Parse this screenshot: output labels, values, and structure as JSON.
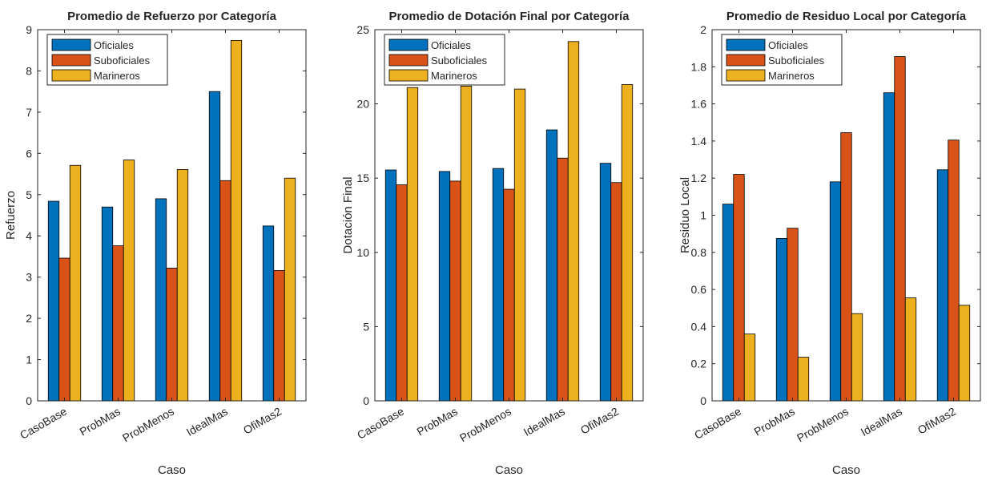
{
  "chart_data": [
    {
      "type": "bar",
      "title": "Promedio de Refuerzo por Categoría",
      "xlabel": "Caso",
      "ylabel": "Refuerzo",
      "ylim": [
        0,
        9
      ],
      "yticks": [
        "0",
        "1",
        "2",
        "3",
        "4",
        "5",
        "6",
        "7",
        "8",
        "9"
      ],
      "categories": [
        "CasoBase",
        "ProbMas",
        "ProbMenos",
        "IdealMas",
        "OfiMas2"
      ],
      "series": [
        {
          "name": "Oficiales",
          "color": "#0072BD",
          "values": [
            4.84,
            4.7,
            4.9,
            7.5,
            4.24
          ]
        },
        {
          "name": "Suboficiales",
          "color": "#D95319",
          "values": [
            3.46,
            3.76,
            3.22,
            5.34,
            3.16
          ]
        },
        {
          "name": "Marineros",
          "color": "#EDB120",
          "values": [
            5.71,
            5.84,
            5.61,
            8.74,
            5.4
          ]
        }
      ],
      "legend": "top-left",
      "grid": false
    },
    {
      "type": "bar",
      "title": "Promedio de Dotación Final por Categoría",
      "xlabel": "Caso",
      "ylabel": "Dotación Final",
      "ylim": [
        0,
        25
      ],
      "yticks": [
        "0",
        "5",
        "10",
        "15",
        "20",
        "25"
      ],
      "categories": [
        "CasoBase",
        "ProbMas",
        "ProbMenos",
        "IdealMas",
        "OfiMas2"
      ],
      "series": [
        {
          "name": "Oficiales",
          "color": "#0072BD",
          "values": [
            15.55,
            15.45,
            15.65,
            18.25,
            16.0
          ]
        },
        {
          "name": "Suboficiales",
          "color": "#D95319",
          "values": [
            14.55,
            14.8,
            14.25,
            16.35,
            14.7
          ]
        },
        {
          "name": "Marineros",
          "color": "#EDB120",
          "values": [
            21.1,
            21.2,
            21.0,
            24.2,
            21.3
          ]
        }
      ],
      "legend": "top-left",
      "grid": false
    },
    {
      "type": "bar",
      "title": "Promedio de Residuo Local por Categoría",
      "xlabel": "Caso",
      "ylabel": "Residuo Local",
      "ylim": [
        0,
        2
      ],
      "yticks": [
        "0",
        "0.2",
        "0.4",
        "0.6",
        "0.8",
        "1",
        "1.2",
        "1.4",
        "1.6",
        "1.8",
        "2"
      ],
      "categories": [
        "CasoBase",
        "ProbMas",
        "ProbMenos",
        "IdealMas",
        "OfiMas2"
      ],
      "series": [
        {
          "name": "Oficiales",
          "color": "#0072BD",
          "values": [
            1.06,
            0.875,
            1.18,
            1.66,
            1.245
          ]
        },
        {
          "name": "Suboficiales",
          "color": "#D95319",
          "values": [
            1.22,
            0.93,
            1.445,
            1.855,
            1.405
          ]
        },
        {
          "name": "Marineros",
          "color": "#EDB120",
          "values": [
            0.36,
            0.235,
            0.47,
            0.555,
            0.515
          ]
        }
      ],
      "legend": "top-left",
      "grid": false
    }
  ]
}
